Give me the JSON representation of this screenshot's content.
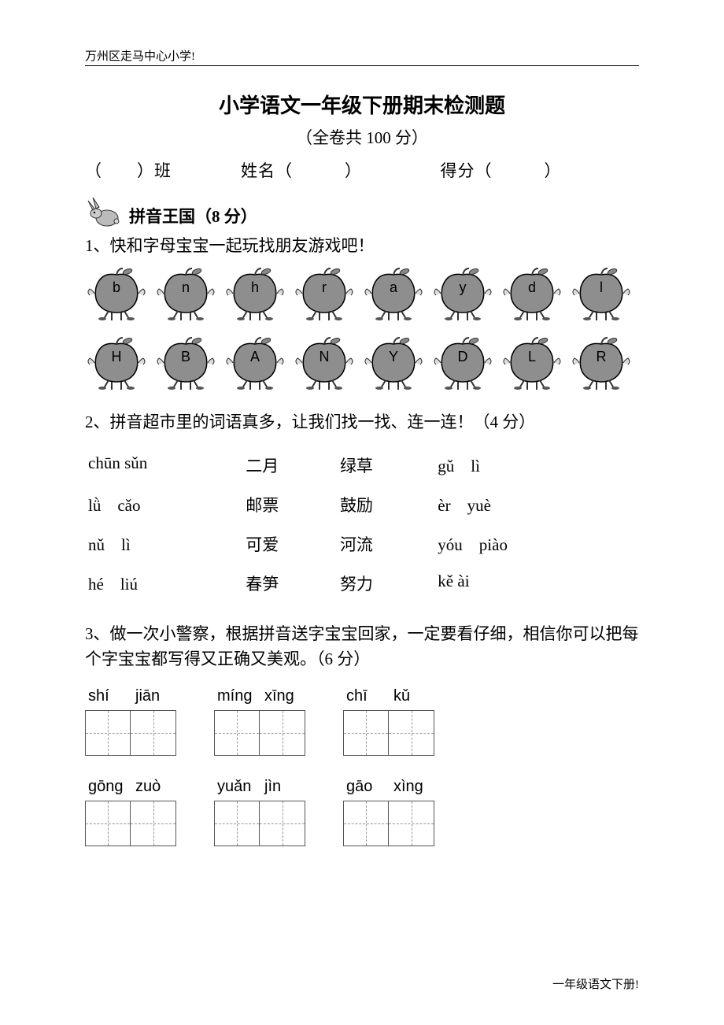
{
  "header": "万州区走马中心小学!",
  "title": "小学语文一年级下册期末检测题",
  "subtitle": "（全卷共 100 分）",
  "info_line": "（　　）班　　　　姓名（　　　）　　　　　得分（　　　）",
  "section1_title": "拼音王国（8 分）",
  "q1": "1、快和字母宝宝一起玩找朋友游戏吧！",
  "apples_top": [
    "b",
    "n",
    "h",
    "r",
    "a",
    "y",
    "d",
    "l"
  ],
  "apples_bottom": [
    "H",
    "B",
    "A",
    "N",
    "Y",
    "D",
    "L",
    "R"
  ],
  "q2": "2、拼音超市里的词语真多，让我们找一找、连一连！（4 分）",
  "match_rows": [
    {
      "p1": "chūn sǔn",
      "w1": "二月",
      "w2": "绿草",
      "p2": "gǔ　lì"
    },
    {
      "p1": "lǜ　cǎo",
      "w1": "邮票",
      "w2": "鼓励",
      "p2": "èr　yuè"
    },
    {
      "p1": "nǔ　lì",
      "w1": "可爱",
      "w2": "河流",
      "p2": "yóu　piào"
    },
    {
      "p1": "hé　liú",
      "w1": "春笋",
      "w2": "努力",
      "p2": "kě ài"
    }
  ],
  "q3": "3、做一次小警察，根据拼音送字宝宝回家，一定要看仔细，相信你可以把每个字宝宝都写得又正确又美观。（6 分）",
  "pinyin_groups_row1": [
    [
      "shí",
      "jiān"
    ],
    [
      "míng",
      "xīng"
    ],
    [
      "chī",
      "kǔ"
    ]
  ],
  "pinyin_groups_row2": [
    [
      "gōng",
      "zuò"
    ],
    [
      "yuǎn",
      "jìn"
    ],
    [
      "gāo",
      "xìng"
    ]
  ],
  "footer": "一年级语文下册!",
  "colors": {
    "text": "#000000",
    "bg": "#ffffff",
    "apple_fill": "#8e8e8e",
    "apple_stroke": "#000000",
    "box_border": "#555555",
    "box_dash": "#999999"
  }
}
